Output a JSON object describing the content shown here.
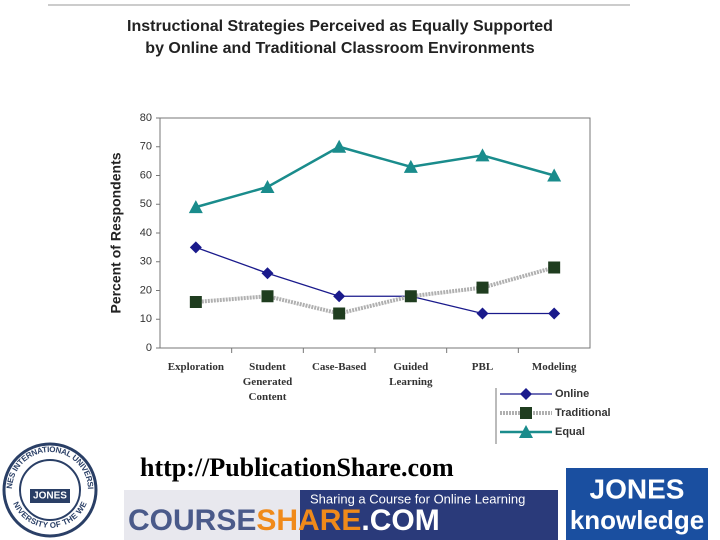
{
  "chart_data": {
    "type": "line",
    "title": [
      "Instructional Strategies Perceived as Equally Supported",
      "by Online and Traditional Classroom Environments"
    ],
    "y_label": "Percent of Respondents",
    "categories": [
      "Exploration",
      "Student Generated Content",
      "Case-Based",
      "Guided Learning",
      "PBL",
      "Modeling"
    ],
    "series": [
      {
        "name": "Online",
        "color": "#1a1a8c",
        "marker": "diamond",
        "dash": "solid",
        "values": [
          35,
          26,
          18,
          18,
          12,
          12
        ]
      },
      {
        "name": "Traditional",
        "color": "#1f3d1f",
        "line_color": "#b0b0b0",
        "marker": "square",
        "dash": "dotted",
        "values": [
          16,
          18,
          12,
          18,
          21,
          28
        ]
      },
      {
        "name": "Equal",
        "color": "#1a8c8c",
        "marker": "triangle",
        "dash": "solid",
        "values": [
          49,
          56,
          70,
          63,
          67,
          60
        ]
      }
    ],
    "ylim": [
      0,
      80
    ],
    "yticks": [
      0,
      10,
      20,
      30,
      40,
      50,
      60,
      70,
      80
    ],
    "grid": false
  },
  "footer": {
    "url": "http://PublicationShare.com",
    "seal_top": "JONES INTERNATIONAL UNIVERSITY",
    "seal_bottom": "UNIVERSITY OF THE WEB",
    "seal_center": "JONES",
    "banner_tagline": "Sharing a Course for Online Learning",
    "banner_name_1": "COURSE",
    "banner_name_2": "SHARE",
    "banner_name_3": ".COM",
    "brand_1": "JONES",
    "brand_2": "knowledge"
  }
}
